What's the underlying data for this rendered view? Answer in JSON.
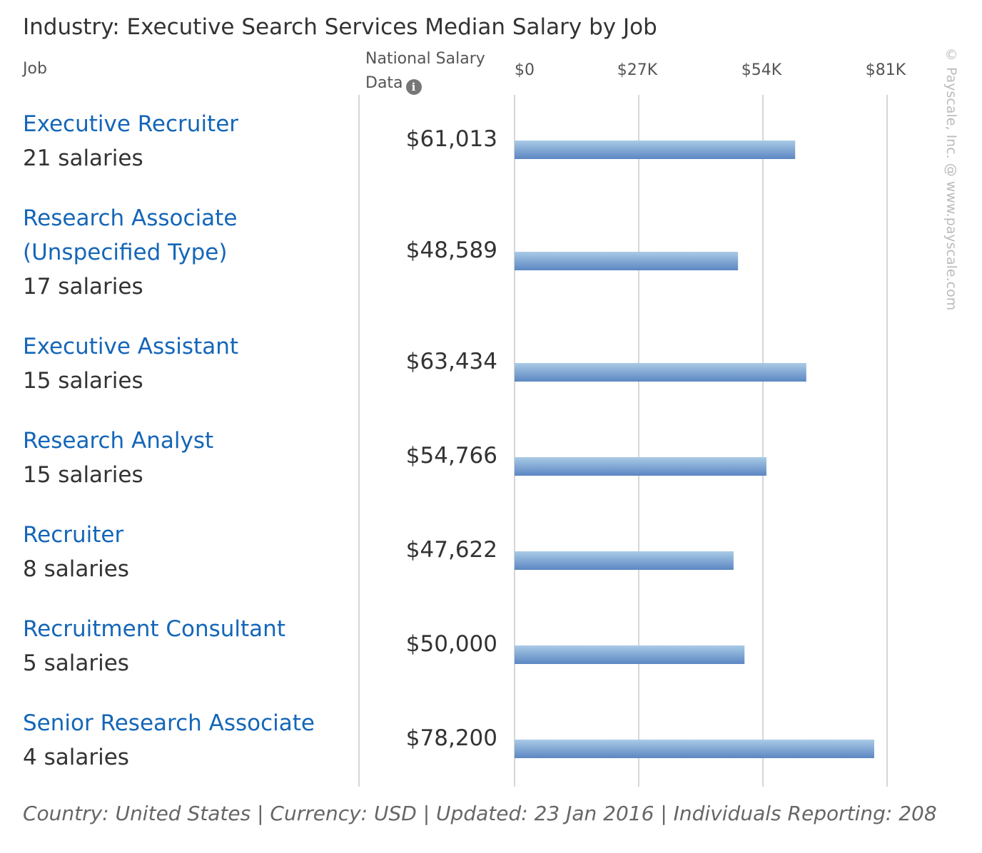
{
  "title": "Industry: Executive Search Services Median Salary by Job",
  "header": {
    "job_label": "Job",
    "national_line1": "National Salary",
    "national_line2": "Data",
    "info_icon": "info-icon"
  },
  "watermark": "© Payscale, Inc. @ www.payscale.com",
  "footer": "Country: United States | Currency: USD | Updated: 23 Jan 2016 | Individuals Reporting: 208",
  "chart_data": {
    "type": "bar",
    "orientation": "horizontal",
    "title": "Industry: Executive Search Services Median Salary by Job",
    "categories": [
      "Executive Recruiter",
      "Research Associate (Unspecified Type)",
      "Executive Assistant",
      "Research Analyst",
      "Recruiter",
      "Recruitment Consultant",
      "Senior Research Associate"
    ],
    "salary_counts": [
      "21 salaries",
      "17 salaries",
      "15 salaries",
      "15 salaries",
      "8 salaries",
      "5 salaries",
      "4 salaries"
    ],
    "values": [
      61013,
      48589,
      63434,
      54766,
      47622,
      50000,
      78200
    ],
    "value_labels": [
      "$61,013",
      "$48,589",
      "$63,434",
      "$54,766",
      "$47,622",
      "$50,000",
      "$78,200"
    ],
    "x_ticks": [
      0,
      27000,
      54000,
      81000
    ],
    "x_tick_labels": [
      "$0",
      "$27K",
      "$54K",
      "$81K"
    ],
    "xlim": [
      0,
      81000
    ],
    "grid": true,
    "bar_color_top": "#a9cbe6",
    "bar_color_bottom": "#5b86c2"
  }
}
